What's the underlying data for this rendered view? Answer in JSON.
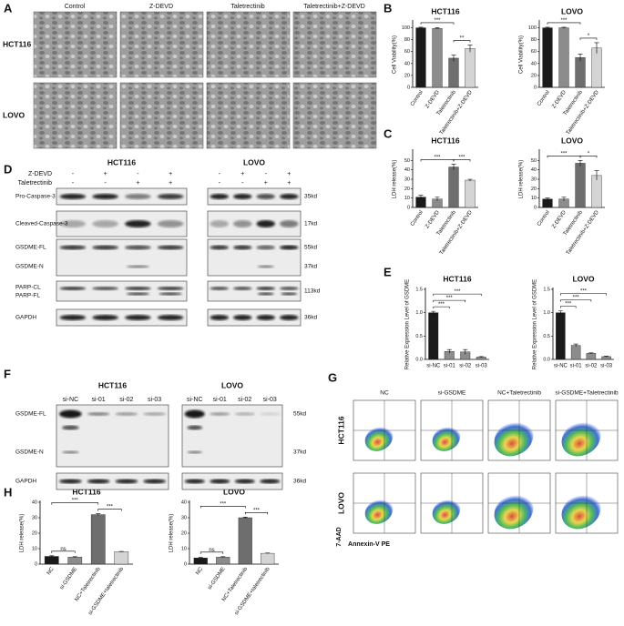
{
  "panel_labels": [
    "A",
    "B",
    "C",
    "D",
    "E",
    "F",
    "G",
    "H"
  ],
  "panel_a": {
    "columns": [
      "Control",
      "Z-DEVD",
      "Taletrectinib",
      "Taletrectinib+Z-DEVD"
    ],
    "rows": [
      "HCT116",
      "LOVO"
    ]
  },
  "panel_d": {
    "treatments": [
      "Z-DEVD",
      "Taletrectinib"
    ],
    "blots": [
      {
        "cell": "HCT116",
        "signs": [
          [
            "-",
            "+",
            "-",
            "+"
          ],
          [
            "-",
            "-",
            "+",
            "+"
          ]
        ]
      },
      {
        "cell": "LOVO",
        "signs": [
          [
            "-",
            "+",
            "-",
            "+"
          ],
          [
            "-",
            "-",
            "+",
            "+"
          ]
        ]
      }
    ],
    "proteins": [
      "Pro-Caspase-3",
      "Cleaved-Caspase-3",
      "GSDME-FL",
      "GSDME-N",
      "PARP-CL",
      "PARP-FL",
      "GAPDH"
    ],
    "sizes": [
      "35kd",
      "17kd",
      "55kd",
      "37kd",
      "113kd",
      "36kd"
    ]
  },
  "panel_f": {
    "cells": [
      "HCT116",
      "LOVO"
    ],
    "lanes": [
      "si-NC",
      "si-01",
      "si-02",
      "si-03"
    ],
    "proteins": [
      "GSDME-FL",
      "GSDME-N",
      "GAPDH"
    ],
    "sizes": [
      "55kd",
      "37kd",
      "36kd"
    ]
  },
  "panel_g": {
    "columns": [
      "NC",
      "si-GSDME",
      "NC+Taletrectinib",
      "si-GSDME+Taletrectinib"
    ],
    "rows": [
      "HCT116",
      "LOVO"
    ],
    "ylabel": "7-AAD",
    "xlabel": "Annexin-V PE"
  },
  "chart_data": [
    {
      "type": "bar",
      "title": "HCT116",
      "ylabel": "Cell Viability(%)",
      "categories": [
        "Control",
        "Z-DEVD",
        "Taletrectinib",
        "Taletrectinib+Z-DEVD"
      ],
      "values": [
        100,
        99,
        49,
        65
      ],
      "errors": [
        1,
        1,
        5,
        6
      ],
      "colors": [
        "#1a1a1a",
        "#8c8c8c",
        "#6e6e6e",
        "#d4d4d4"
      ],
      "ylim": [
        0,
        110
      ],
      "yticks": [
        0,
        20,
        40,
        60,
        80,
        100
      ],
      "annotations": [
        {
          "label": "***",
          "from": 0,
          "to": 2
        },
        {
          "label": "**",
          "from": 2,
          "to": 3
        }
      ]
    },
    {
      "type": "bar",
      "title": "LOVO",
      "ylabel": "Cell Viability(%)",
      "categories": [
        "Control",
        "Z-DEVD",
        "Taletrectinib",
        "Taletrectinib+Z-DEVD"
      ],
      "values": [
        100,
        100,
        50,
        66
      ],
      "errors": [
        1,
        1,
        6,
        9
      ],
      "colors": [
        "#1a1a1a",
        "#8c8c8c",
        "#6e6e6e",
        "#d4d4d4"
      ],
      "ylim": [
        0,
        110
      ],
      "yticks": [
        0,
        20,
        40,
        60,
        80,
        100
      ],
      "annotations": [
        {
          "label": "***",
          "from": 0,
          "to": 2
        },
        {
          "label": "*",
          "from": 2,
          "to": 3
        }
      ]
    },
    {
      "type": "bar",
      "title": "HCT116",
      "ylabel": "LDH release(%)",
      "categories": [
        "Control",
        "Z-DEVD",
        "Taletrectinib",
        "Taletrectinib+Z-DEVD"
      ],
      "values": [
        11,
        9,
        43,
        29
      ],
      "errors": [
        2,
        2,
        3,
        1
      ],
      "colors": [
        "#1a1a1a",
        "#8c8c8c",
        "#6e6e6e",
        "#d4d4d4"
      ],
      "ylim": [
        0,
        60
      ],
      "yticks": [
        0,
        10,
        20,
        30,
        40,
        50
      ],
      "annotations": [
        {
          "label": "***",
          "from": 0,
          "to": 2
        },
        {
          "label": "***",
          "from": 2,
          "to": 3
        }
      ]
    },
    {
      "type": "bar",
      "title": "LOVO",
      "ylabel": "LDH release(%)",
      "categories": [
        "Control",
        "Z-DEVD",
        "Taletrectinib",
        "Taletrectinib+Z-DEVD"
      ],
      "values": [
        9,
        9,
        47,
        34
      ],
      "errors": [
        1,
        2,
        3,
        5
      ],
      "colors": [
        "#1a1a1a",
        "#8c8c8c",
        "#6e6e6e",
        "#d4d4d4"
      ],
      "ylim": [
        0,
        60
      ],
      "yticks": [
        0,
        10,
        20,
        30,
        40,
        50
      ],
      "annotations": [
        {
          "label": "***",
          "from": 0,
          "to": 2
        },
        {
          "label": "*",
          "from": 2,
          "to": 3
        }
      ]
    },
    {
      "type": "bar",
      "title": "HCT116",
      "ylabel": "Relative Expression Level of GSDME",
      "categories": [
        "si-NC",
        "si-01",
        "si-02",
        "si-03"
      ],
      "values": [
        1.0,
        0.17,
        0.16,
        0.05
      ],
      "errors": [
        0.03,
        0.04,
        0.05,
        0.01
      ],
      "colors": [
        "#1a1a1a",
        "#8c8c8c",
        "#8c8c8c",
        "#8c8c8c"
      ],
      "ylim": [
        0,
        1.5
      ],
      "yticks": [
        {
          "value": 0,
          "label": "0.0"
        },
        0.5,
        {
          "value": 1,
          "label": "1.0"
        },
        1.5
      ],
      "annotations": [
        {
          "label": "***",
          "from": 0,
          "to": 1
        },
        {
          "label": "***",
          "from": 0,
          "to": 2
        },
        {
          "label": "***",
          "from": 0,
          "to": 3
        }
      ]
    },
    {
      "type": "bar",
      "title": "LOVO",
      "ylabel": "Relative Expression Level of GSDME",
      "categories": [
        "si-NC",
        "si-01",
        "si-02",
        "si-03"
      ],
      "values": [
        1.0,
        0.3,
        0.13,
        0.06
      ],
      "errors": [
        0.04,
        0.03,
        0.01,
        0.01
      ],
      "colors": [
        "#1a1a1a",
        "#8c8c8c",
        "#8c8c8c",
        "#8c8c8c"
      ],
      "ylim": [
        0,
        1.5
      ],
      "yticks": [
        {
          "value": 0,
          "label": "0.0"
        },
        0.5,
        {
          "value": 1,
          "label": "1.0"
        },
        1.5
      ],
      "annotations": [
        {
          "label": "***",
          "from": 0,
          "to": 1
        },
        {
          "label": "***",
          "from": 0,
          "to": 2
        },
        {
          "label": "***",
          "from": 0,
          "to": 3
        }
      ]
    },
    {
      "type": "bar",
      "title": "HCT116",
      "ylabel": "LDH release(%)",
      "categories": [
        "NC",
        "si-GSDME",
        "NC+Taletrectinib",
        "si-GSDME+taletrectinib"
      ],
      "values": [
        5,
        4.5,
        32,
        8
      ],
      "errors": [
        0.4,
        0.3,
        0.6,
        0.2
      ],
      "colors": [
        "#1a1a1a",
        "#8c8c8c",
        "#6e6e6e",
        "#d4d4d4"
      ],
      "ylim": [
        0,
        40
      ],
      "yticks": [
        0,
        10,
        20,
        30,
        40
      ],
      "annotations": [
        {
          "label": "ns",
          "from": 0,
          "to": 1
        },
        {
          "label": "***",
          "from": 0,
          "to": 2
        },
        {
          "label": "***",
          "from": 2,
          "to": 3
        }
      ]
    },
    {
      "type": "bar",
      "title": "LOVO",
      "ylabel": "LDH release(%)",
      "categories": [
        "NC",
        "si-GSDME",
        "NC+Taletrectinib",
        "si-GSDME+taletrectinib"
      ],
      "values": [
        4,
        4.5,
        30,
        7
      ],
      "errors": [
        0.3,
        0.3,
        0.4,
        0.2
      ],
      "colors": [
        "#1a1a1a",
        "#8c8c8c",
        "#6e6e6e",
        "#d4d4d4"
      ],
      "ylim": [
        0,
        40
      ],
      "yticks": [
        0,
        10,
        20,
        30,
        40
      ],
      "annotations": [
        {
          "label": "ns",
          "from": 0,
          "to": 1
        },
        {
          "label": "***",
          "from": 0,
          "to": 2
        },
        {
          "label": "***",
          "from": 2,
          "to": 3
        }
      ]
    }
  ]
}
